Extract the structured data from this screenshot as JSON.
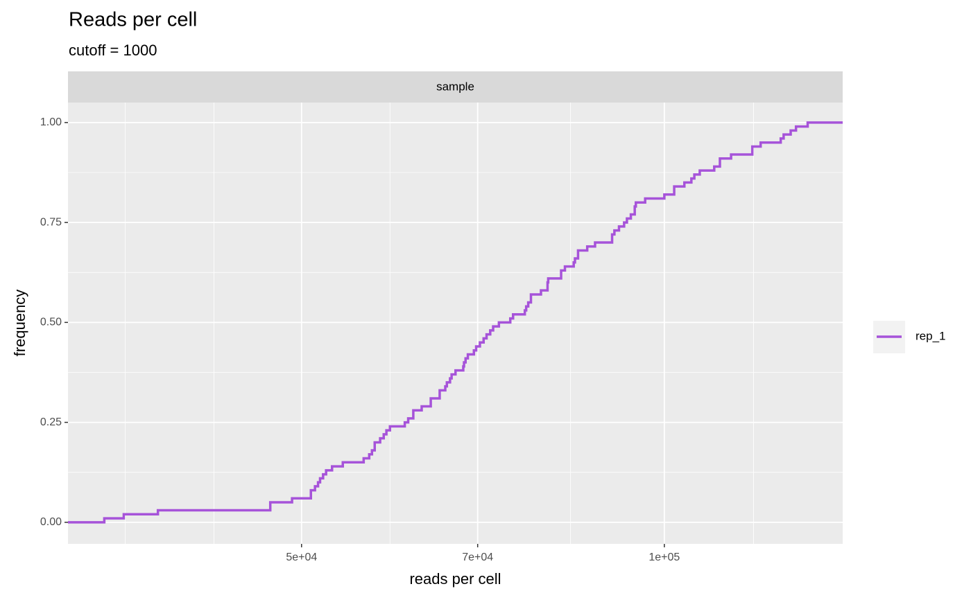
{
  "chart_data": {
    "type": "step",
    "title": "Reads per cell",
    "subtitle": "cutoff = 1000",
    "facet": "sample",
    "x_label": "reads per cell",
    "y_label": "frequency",
    "xscale": "log",
    "xlim": [
      32000,
      140600
    ],
    "ylim": [
      -0.054,
      1.05
    ],
    "xticks": [
      {
        "value": 50000,
        "label": "5e+04"
      },
      {
        "value": 70000,
        "label": "7e+04"
      },
      {
        "value": 100000,
        "label": "1e+05"
      }
    ],
    "xminor": [
      35700,
      42300,
      59200,
      83600,
      118600
    ],
    "yticks": [
      {
        "value": 0,
        "label": "0.00"
      },
      {
        "value": 0.25,
        "label": "0.25"
      },
      {
        "value": 0.5,
        "label": "0.50"
      },
      {
        "value": 0.75,
        "label": "0.75"
      },
      {
        "value": 1,
        "label": "1.00"
      }
    ],
    "yminor": [
      0.125,
      0.375,
      0.625,
      0.875
    ],
    "grid": true,
    "legend": "right",
    "series": [
      {
        "name": "rep_1",
        "color": "#a653d9",
        "x": [
          32000,
          34300,
          35600,
          38000,
          47100,
          49100,
          50900,
          51300,
          51600,
          51800,
          52100,
          52400,
          53000,
          54100,
          56300,
          56900,
          57200,
          57500,
          58100,
          58500,
          58800,
          59200,
          60900,
          61300,
          61900,
          62900,
          64000,
          65100,
          65800,
          66000,
          66400,
          66600,
          67100,
          68100,
          68200,
          68400,
          68700,
          69500,
          69800,
          70300,
          70800,
          71200,
          71700,
          72100,
          72900,
          74500,
          74900,
          76600,
          76800,
          77100,
          77500,
          79000,
          80000,
          80100,
          82100,
          82700,
          84100,
          84300,
          84800,
          86300,
          87600,
          90500,
          90900,
          91700,
          92600,
          93100,
          93800,
          94500,
          94700,
          96400,
          100000,
          101900,
          103900,
          105300,
          105900,
          107000,
          110000,
          111200,
          113600,
          118300,
          120200,
          124900,
          125600,
          127300,
          128600,
          131500,
          140600
        ],
        "values": [
          0,
          0.01,
          0.02,
          0.03,
          0.05,
          0.06,
          0.08,
          0.09,
          0.1,
          0.11,
          0.12,
          0.13,
          0.14,
          0.15,
          0.16,
          0.17,
          0.18,
          0.2,
          0.21,
          0.22,
          0.23,
          0.24,
          0.25,
          0.26,
          0.28,
          0.29,
          0.31,
          0.33,
          0.34,
          0.35,
          0.36,
          0.37,
          0.38,
          0.39,
          0.4,
          0.41,
          0.42,
          0.43,
          0.44,
          0.45,
          0.46,
          0.47,
          0.48,
          0.49,
          0.5,
          0.51,
          0.52,
          0.53,
          0.54,
          0.55,
          0.57,
          0.58,
          0.6,
          0.61,
          0.63,
          0.64,
          0.65,
          0.66,
          0.68,
          0.69,
          0.7,
          0.72,
          0.73,
          0.74,
          0.75,
          0.76,
          0.77,
          0.79,
          0.8,
          0.81,
          0.82,
          0.84,
          0.85,
          0.86,
          0.87,
          0.88,
          0.89,
          0.91,
          0.92,
          0.94,
          0.95,
          0.96,
          0.97,
          0.98,
          0.99,
          1.0,
          1.0
        ]
      }
    ]
  }
}
